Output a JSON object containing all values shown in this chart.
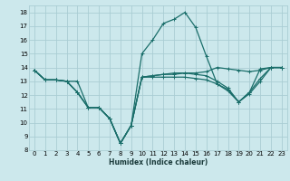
{
  "xlabel": "Humidex (Indice chaleur)",
  "bg_color": "#cce8ec",
  "grid_color": "#aacdd4",
  "line_color": "#1a6e6a",
  "xlim": [
    -0.5,
    23.5
  ],
  "ylim": [
    8,
    18.5
  ],
  "yticks": [
    8,
    9,
    10,
    11,
    12,
    13,
    14,
    15,
    16,
    17,
    18
  ],
  "xticks": [
    0,
    1,
    2,
    3,
    4,
    5,
    6,
    7,
    8,
    9,
    10,
    11,
    12,
    13,
    14,
    15,
    16,
    17,
    18,
    19,
    20,
    21,
    22,
    23
  ],
  "series": [
    [
      13.8,
      13.1,
      13.1,
      13.0,
      13.0,
      11.1,
      11.1,
      10.3,
      8.5,
      9.8,
      13.3,
      13.4,
      13.5,
      13.5,
      13.6,
      13.6,
      13.7,
      14.0,
      13.9,
      13.8,
      13.7,
      13.8,
      14.0,
      14.0
    ],
    [
      13.8,
      13.1,
      13.1,
      13.0,
      12.2,
      11.1,
      11.1,
      10.3,
      8.5,
      9.8,
      15.0,
      16.0,
      17.2,
      17.5,
      18.0,
      16.9,
      14.8,
      12.8,
      12.4,
      11.5,
      12.2,
      13.9,
      14.0,
      14.0
    ],
    [
      13.8,
      13.1,
      13.1,
      13.0,
      12.2,
      11.1,
      11.1,
      10.3,
      8.5,
      9.8,
      13.3,
      13.4,
      13.5,
      13.6,
      13.6,
      13.5,
      13.4,
      13.0,
      12.5,
      11.5,
      12.2,
      13.2,
      14.0,
      14.0
    ],
    [
      13.8,
      13.1,
      13.1,
      13.0,
      12.2,
      11.1,
      11.1,
      10.3,
      8.5,
      9.8,
      13.3,
      13.3,
      13.3,
      13.3,
      13.3,
      13.2,
      13.1,
      12.8,
      12.3,
      11.5,
      12.1,
      13.0,
      14.0,
      14.0
    ]
  ]
}
